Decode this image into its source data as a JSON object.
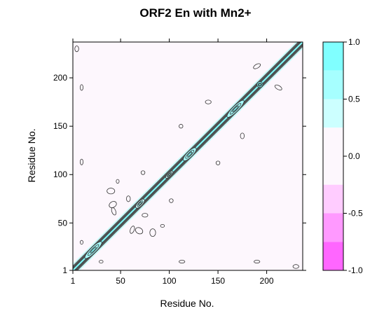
{
  "chart_data": {
    "type": "heatmap",
    "title": "ORF2 En with Mn2+",
    "xlabel": "Residue No.",
    "ylabel": "Residue No.",
    "xlim": [
      1,
      237
    ],
    "ylim": [
      1,
      237
    ],
    "x_ticks": [
      {
        "value": 1,
        "label": "1"
      },
      {
        "value": 50,
        "label": "50"
      },
      {
        "value": 100,
        "label": "100"
      },
      {
        "value": 150,
        "label": "150"
      },
      {
        "value": 200,
        "label": "200"
      }
    ],
    "y_ticks": [
      {
        "value": 1,
        "label": "1"
      },
      {
        "value": 50,
        "label": "50"
      },
      {
        "value": 100,
        "label": "100"
      },
      {
        "value": 150,
        "label": "150"
      },
      {
        "value": 200,
        "label": "200"
      }
    ],
    "diagonal": {
      "from": 1,
      "to": 237,
      "value": 1.0
    },
    "features": [
      {
        "x": 22,
        "y": 22,
        "rx": 12,
        "ry": 3,
        "angle": 45,
        "value": 0.5
      },
      {
        "x": 70,
        "y": 70,
        "rx": 6,
        "ry": 2.5,
        "angle": 45,
        "value": 0.4
      },
      {
        "x": 100,
        "y": 100,
        "rx": 5,
        "ry": 2,
        "angle": 45,
        "value": 0.4
      },
      {
        "x": 121,
        "y": 121,
        "rx": 9,
        "ry": 3,
        "angle": 45,
        "value": 0.5
      },
      {
        "x": 168,
        "y": 168,
        "rx": 12,
        "ry": 3,
        "angle": 45,
        "value": 0.5
      },
      {
        "x": 193,
        "y": 193,
        "rx": 3,
        "ry": 3,
        "angle": 0,
        "value": 0.8
      },
      {
        "x": 42,
        "y": 69,
        "rx": 4,
        "ry": 3,
        "angle": 30,
        "value": 0.2
      },
      {
        "x": 69,
        "y": 42,
        "rx": 3,
        "ry": 4,
        "angle": 60,
        "value": 0.2
      },
      {
        "x": 43,
        "y": 62,
        "rx": 2,
        "ry": 4,
        "angle": 20,
        "value": 0.2
      },
      {
        "x": 62,
        "y": 43,
        "rx": 4,
        "ry": 2,
        "angle": 70,
        "value": 0.2
      },
      {
        "x": 75,
        "y": 58,
        "rx": 3,
        "ry": 2,
        "angle": 0,
        "value": 0.2
      },
      {
        "x": 58,
        "y": 75,
        "rx": 2,
        "ry": 3,
        "angle": 0,
        "value": 0.2
      },
      {
        "x": 83,
        "y": 40,
        "rx": 3,
        "ry": 4,
        "angle": 0,
        "value": 0.2
      },
      {
        "x": 40,
        "y": 83,
        "rx": 4,
        "ry": 3,
        "angle": 0,
        "value": 0.2
      },
      {
        "x": 190,
        "y": 212,
        "rx": 4,
        "ry": 2,
        "angle": 30,
        "value": 0.2
      },
      {
        "x": 212,
        "y": 190,
        "rx": 2,
        "ry": 4,
        "angle": 60,
        "value": 0.2
      },
      {
        "x": 140,
        "y": 175,
        "rx": 3,
        "ry": 2,
        "angle": 0,
        "value": 0.2
      },
      {
        "x": 175,
        "y": 140,
        "rx": 2,
        "ry": 3,
        "angle": 0,
        "value": 0.2
      },
      {
        "x": 112,
        "y": 150,
        "rx": 2,
        "ry": 2,
        "angle": 0,
        "value": 0.2
      },
      {
        "x": 150,
        "y": 112,
        "rx": 2,
        "ry": 2,
        "angle": 0,
        "value": 0.2
      },
      {
        "x": 113,
        "y": 10,
        "rx": 3,
        "ry": 1.5,
        "angle": 0,
        "value": 0.15
      },
      {
        "x": 10,
        "y": 113,
        "rx": 1.5,
        "ry": 3,
        "angle": 0,
        "value": 0.15
      },
      {
        "x": 93,
        "y": 47,
        "rx": 2,
        "ry": 1.5,
        "angle": 0,
        "value": 0.15
      },
      {
        "x": 47,
        "y": 93,
        "rx": 1.5,
        "ry": 2,
        "angle": 0,
        "value": 0.15
      },
      {
        "x": 190,
        "y": 10,
        "rx": 3,
        "ry": 1.5,
        "angle": 0,
        "value": 0.15
      },
      {
        "x": 10,
        "y": 190,
        "rx": 1.5,
        "ry": 3,
        "angle": 0,
        "value": 0.15
      },
      {
        "x": 230,
        "y": 5,
        "rx": 3,
        "ry": 2,
        "angle": 0,
        "value": 0.15
      },
      {
        "x": 5,
        "y": 230,
        "rx": 2,
        "ry": 3,
        "angle": 0,
        "value": 0.15
      },
      {
        "x": 30,
        "y": 10,
        "rx": 2,
        "ry": 1.5,
        "angle": 0,
        "value": 0.15
      },
      {
        "x": 10,
        "y": 30,
        "rx": 1.5,
        "ry": 2,
        "angle": 0,
        "value": 0.15
      },
      {
        "x": 102,
        "y": 73,
        "rx": 2,
        "ry": 2,
        "angle": 0,
        "value": 0.15
      },
      {
        "x": 73,
        "y": 102,
        "rx": 2,
        "ry": 2,
        "angle": 0,
        "value": 0.15
      }
    ],
    "colorkey": {
      "range": [
        -1.0,
        1.0
      ],
      "ticks": [
        {
          "value": 1.0,
          "label": "1.0"
        },
        {
          "value": 0.5,
          "label": "0.5"
        },
        {
          "value": 0.0,
          "label": "0.0"
        },
        {
          "value": -0.5,
          "label": "-0.5"
        },
        {
          "value": -1.0,
          "label": "-1.0"
        }
      ],
      "bands": [
        {
          "from": 0.75,
          "to": 1.0,
          "color": "#80FFFF"
        },
        {
          "from": 0.5,
          "to": 0.75,
          "color": "#A6FFFF"
        },
        {
          "from": 0.25,
          "to": 0.5,
          "color": "#CCFFFF"
        },
        {
          "from": -0.25,
          "to": 0.25,
          "color": "#FDF7FD"
        },
        {
          "from": -0.5,
          "to": -0.25,
          "color": "#FFCCFF"
        },
        {
          "from": -0.75,
          "to": -0.5,
          "color": "#FF99FF"
        },
        {
          "from": -1.0,
          "to": -0.75,
          "color": "#FF66FF"
        }
      ]
    },
    "background_color": "#FDF7FD",
    "line_color": "#333333",
    "grid": false,
    "legend": "right"
  }
}
